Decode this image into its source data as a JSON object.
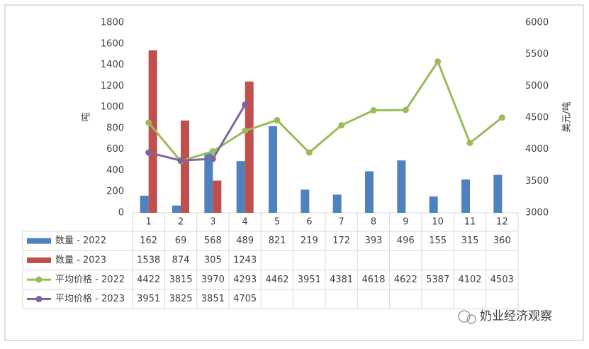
{
  "chart_data": {
    "type": "bar",
    "categories": [
      "1",
      "2",
      "3",
      "4",
      "5",
      "6",
      "7",
      "8",
      "9",
      "10",
      "11",
      "12"
    ],
    "ylabel": "吨",
    "y2label": "美元/吨",
    "ylim": [
      0,
      1800
    ],
    "yticks": [
      0,
      200,
      400,
      600,
      800,
      1000,
      1200,
      1400,
      1600,
      1800
    ],
    "y2lim": [
      3000,
      6000
    ],
    "y2ticks": [
      3000,
      3500,
      4000,
      4500,
      5000,
      5500,
      6000
    ],
    "grid": false,
    "series": [
      {
        "name": "数量 - 2022",
        "type": "bar",
        "color": "#4f81bd",
        "values": [
          162,
          69,
          568,
          489,
          821,
          219,
          172,
          393,
          496,
          155,
          315,
          360
        ]
      },
      {
        "name": "数量 - 2023",
        "type": "bar",
        "color": "#c0504d",
        "values": [
          1538,
          874,
          305,
          1243,
          null,
          null,
          null,
          null,
          null,
          null,
          null,
          null
        ]
      },
      {
        "name": "平均价格 - 2022",
        "type": "line",
        "axis": "y2",
        "color": "#9bbb59",
        "values": [
          4422,
          3815,
          3970,
          4293,
          4462,
          3951,
          4381,
          4618,
          4622,
          5387,
          4102,
          4503
        ]
      },
      {
        "name": "平均价格 - 2023",
        "type": "line",
        "axis": "y2",
        "color": "#8064a2",
        "values": [
          3951,
          3825,
          3851,
          4705,
          null,
          null,
          null,
          null,
          null,
          null,
          null,
          null
        ]
      }
    ],
    "watermark": "奶业经济观察"
  }
}
